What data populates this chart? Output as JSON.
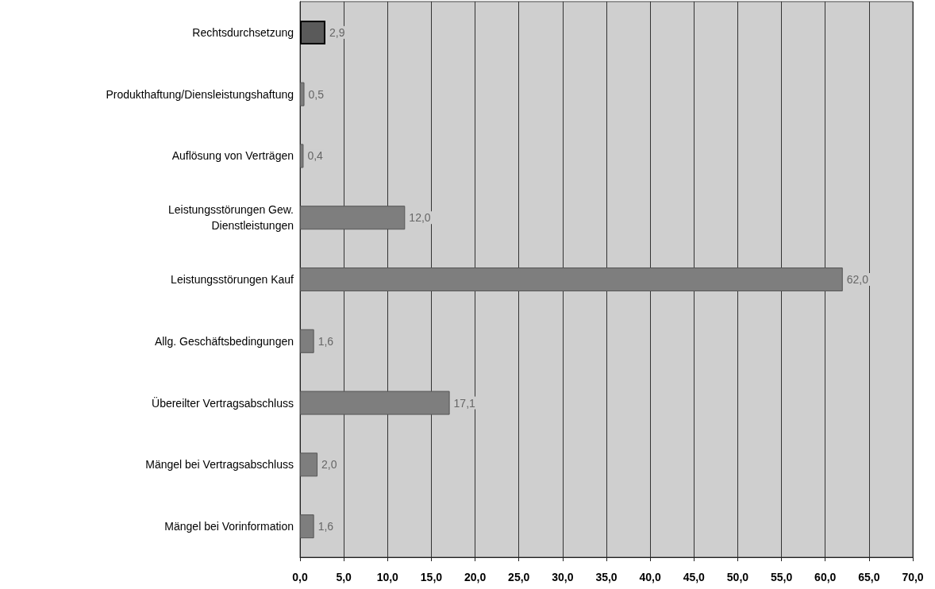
{
  "chart_data": {
    "type": "bar",
    "orientation": "horizontal",
    "categories": [
      "Rechtsdurchsetzung",
      "Produkthaftung/Diensleistungshaftung",
      "Auflösung von Verträgen",
      "Leistungsstörungen Gew.\nDienstleistungen",
      "Leistungsstörungen Kauf",
      "Allg. Geschäftsbedingungen",
      "Übereilter Vertragsabschluss",
      "Mängel bei Vertragsabschluss",
      "Mängel bei Vorinformation"
    ],
    "values": [
      2.9,
      0.5,
      0.4,
      12.0,
      62.0,
      1.6,
      17.1,
      2.0,
      1.6
    ],
    "value_labels": [
      "2,9",
      "0,5",
      "0,4",
      "12,0",
      "62,0",
      "1,6",
      "17,1",
      "2,0",
      "1,6"
    ],
    "colors": [
      "#5a5a5a",
      "#7e7e7e",
      "#7e7e7e",
      "#7e7e7e",
      "#7e7e7e",
      "#7e7e7e",
      "#7e7e7e",
      "#7e7e7e",
      "#7e7e7e"
    ],
    "xlim": [
      0,
      70
    ],
    "xticks": [
      {
        "value": 0,
        "label": "0,0"
      },
      {
        "value": 5,
        "label": "5,0"
      },
      {
        "value": 10,
        "label": "10,0"
      },
      {
        "value": 15,
        "label": "15,0"
      },
      {
        "value": 20,
        "label": "20,0"
      },
      {
        "value": 25,
        "label": "25,0"
      },
      {
        "value": 30,
        "label": "30,0"
      },
      {
        "value": 35,
        "label": "35,0"
      },
      {
        "value": 40,
        "label": "40,0"
      },
      {
        "value": 45,
        "label": "45,0"
      },
      {
        "value": 50,
        "label": "50,0"
      },
      {
        "value": 55,
        "label": "55,0"
      },
      {
        "value": 60,
        "label": "60,0"
      },
      {
        "value": 65,
        "label": "65,0"
      },
      {
        "value": 70,
        "label": "70,0"
      }
    ],
    "grid": "x"
  }
}
